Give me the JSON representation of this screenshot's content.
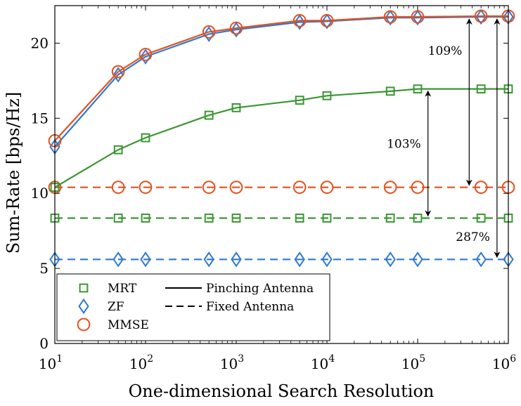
{
  "chart_data": {
    "type": "line",
    "xscale": "log",
    "xlabel": "One-dimensional Search Resolution",
    "ylabel": "Sum-Rate [bps/Hz]",
    "xlim": [
      10,
      1000000
    ],
    "ylim": [
      0,
      22.5
    ],
    "x": [
      10,
      50,
      100,
      500,
      1000,
      5000,
      10000,
      50000,
      100000,
      500000,
      1000000
    ],
    "xticks": [
      {
        "value": 10,
        "base": "10",
        "exp": "1"
      },
      {
        "value": 100,
        "base": "10",
        "exp": "2"
      },
      {
        "value": 1000,
        "base": "10",
        "exp": "3"
      },
      {
        "value": 10000,
        "base": "10",
        "exp": "4"
      },
      {
        "value": 100000,
        "base": "10",
        "exp": "5"
      },
      {
        "value": 1000000,
        "base": "10",
        "exp": "6"
      }
    ],
    "yticks": [
      {
        "value": 0,
        "label": "0"
      },
      {
        "value": 5,
        "label": "5"
      },
      {
        "value": 10,
        "label": "10"
      },
      {
        "value": 15,
        "label": "15"
      },
      {
        "value": 20,
        "label": "20"
      }
    ],
    "series": [
      {
        "key": "mrt-pinching",
        "name": "MRT, Pinching Antenna",
        "color": "#3a9632",
        "marker": "square",
        "dash": "solid",
        "values": [
          10.4,
          12.9,
          13.7,
          15.2,
          15.7,
          16.2,
          16.5,
          16.8,
          16.95,
          16.95,
          16.95
        ]
      },
      {
        "key": "zf-pinching",
        "name": "ZF, Pinching Antenna",
        "color": "#2f79d0",
        "marker": "diamond",
        "dash": "solid",
        "values": [
          13.1,
          17.9,
          19.1,
          20.6,
          20.9,
          21.4,
          21.45,
          21.7,
          21.7,
          21.75,
          21.75
        ]
      },
      {
        "key": "mmse-pinching",
        "name": "MMSE, Pinching Antenna",
        "color": "#e2511f",
        "marker": "circle",
        "dash": "solid",
        "values": [
          13.5,
          18.1,
          19.25,
          20.75,
          21.0,
          21.5,
          21.5,
          21.75,
          21.75,
          21.8,
          21.8
        ]
      },
      {
        "key": "mrt-fixed",
        "name": "MRT, Fixed Antenna",
        "color": "#3a9632",
        "marker": "square",
        "dash": "dashed",
        "values": [
          8.35,
          8.35,
          8.35,
          8.35,
          8.35,
          8.35,
          8.35,
          8.35,
          8.35,
          8.35,
          8.35
        ]
      },
      {
        "key": "zf-fixed",
        "name": "ZF, Fixed Antenna",
        "color": "#2f79d0",
        "marker": "diamond",
        "dash": "dashed",
        "values": [
          5.6,
          5.6,
          5.6,
          5.6,
          5.6,
          5.6,
          5.6,
          5.6,
          5.6,
          5.6,
          5.6
        ]
      },
      {
        "key": "mmse-fixed",
        "name": "MMSE, Fixed Antenna",
        "color": "#e2511f",
        "marker": "circle",
        "dash": "dashed",
        "values": [
          10.4,
          10.4,
          10.4,
          10.4,
          10.4,
          10.4,
          10.4,
          10.4,
          10.4,
          10.4,
          10.4
        ]
      }
    ],
    "legend": {
      "placement": "bottom-left",
      "markers": [
        {
          "label": "MRT",
          "color": "#3a9632",
          "marker": "square"
        },
        {
          "label": "ZF",
          "color": "#2f79d0",
          "marker": "diamond"
        },
        {
          "label": "MMSE",
          "color": "#e2511f",
          "marker": "circle"
        }
      ],
      "lines": [
        {
          "label": "Pinching Antenna",
          "dash": "solid"
        },
        {
          "label": "Fixed Antenna",
          "dash": "dashed"
        }
      ]
    },
    "annotations": [
      {
        "text": "103%",
        "x": 130000,
        "y_from": 16.95,
        "y_to": 8.35
      },
      {
        "text": "109%",
        "x": 370000,
        "y_from": 21.75,
        "y_to": 10.4
      },
      {
        "text": "287%",
        "x": 750000,
        "y_from": 21.75,
        "y_to": 5.6
      }
    ]
  }
}
